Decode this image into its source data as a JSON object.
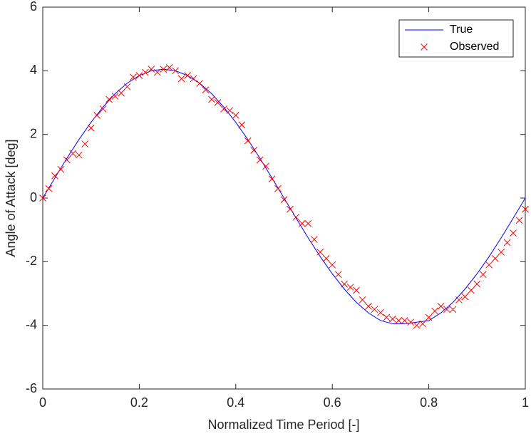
{
  "chart_data": {
    "type": "line",
    "xlabel": "Normalized Time Period [-]",
    "ylabel": "Angle of Attack [deg]",
    "xlim": [
      0,
      1
    ],
    "xticks": [
      0,
      0.2,
      0.4,
      0.6,
      0.8,
      1
    ],
    "ylim": [
      -6,
      6
    ],
    "yticks": [
      -6,
      -4,
      -2,
      0,
      2,
      4,
      6
    ],
    "grid": false,
    "legend": "top-right",
    "series": [
      {
        "name": "True",
        "color": "#0000ff",
        "marker": "none",
        "x": [
          0,
          0.025,
          0.05,
          0.075,
          0.1,
          0.125,
          0.15,
          0.175,
          0.2,
          0.225,
          0.25,
          0.275,
          0.3,
          0.325,
          0.35,
          0.375,
          0.4,
          0.425,
          0.45,
          0.475,
          0.5,
          0.525,
          0.55,
          0.575,
          0.6,
          0.625,
          0.65,
          0.675,
          0.7,
          0.725,
          0.75,
          0.775,
          0.8,
          0.825,
          0.85,
          0.875,
          0.9,
          0.925,
          0.95,
          0.975,
          1
        ],
        "values": [
          0,
          0.63,
          1.25,
          1.84,
          2.38,
          2.86,
          3.28,
          3.61,
          3.85,
          4.0,
          4.05,
          4.0,
          3.85,
          3.61,
          3.28,
          2.86,
          2.38,
          1.84,
          1.25,
          0.63,
          0,
          -0.63,
          -1.25,
          -1.84,
          -2.38,
          -2.86,
          -3.28,
          -3.61,
          -3.85,
          -3.95,
          -3.95,
          -3.9,
          -3.85,
          -3.61,
          -3.28,
          -2.86,
          -2.38,
          -1.84,
          -1.25,
          -0.63,
          0
        ]
      },
      {
        "name": "Observed",
        "color": "#ff0000",
        "marker": "x",
        "x": [
          0,
          0.0125,
          0.025,
          0.0375,
          0.05,
          0.0625,
          0.075,
          0.0875,
          0.1,
          0.1125,
          0.125,
          0.1375,
          0.15,
          0.1625,
          0.175,
          0.1875,
          0.2,
          0.2125,
          0.225,
          0.2375,
          0.25,
          0.2625,
          0.275,
          0.2875,
          0.3,
          0.3125,
          0.325,
          0.3375,
          0.35,
          0.3625,
          0.375,
          0.3875,
          0.4,
          0.4125,
          0.425,
          0.4375,
          0.45,
          0.4625,
          0.475,
          0.4875,
          0.5,
          0.5125,
          0.525,
          0.5375,
          0.55,
          0.5625,
          0.575,
          0.5875,
          0.6,
          0.6125,
          0.625,
          0.6375,
          0.65,
          0.6625,
          0.675,
          0.6875,
          0.7,
          0.7125,
          0.725,
          0.7375,
          0.75,
          0.7625,
          0.775,
          0.7875,
          0.8,
          0.8125,
          0.825,
          0.8375,
          0.85,
          0.8625,
          0.875,
          0.8875,
          0.9,
          0.9125,
          0.925,
          0.9375,
          0.95,
          0.9625,
          0.975,
          0.9875,
          1
        ],
        "values": [
          0,
          0.3,
          0.7,
          0.9,
          1.2,
          1.4,
          1.35,
          1.7,
          2.2,
          2.6,
          2.8,
          3.1,
          3.2,
          3.3,
          3.5,
          3.8,
          3.85,
          3.95,
          4.05,
          3.95,
          4.05,
          4.1,
          4.0,
          3.75,
          3.85,
          3.75,
          3.6,
          3.4,
          3.1,
          3.0,
          2.8,
          2.75,
          2.6,
          2.3,
          1.8,
          1.5,
          1.2,
          1.0,
          0.6,
          0.3,
          -0.05,
          -0.35,
          -0.6,
          -0.8,
          -0.8,
          -1.3,
          -1.7,
          -1.9,
          -2.1,
          -2.4,
          -2.7,
          -2.8,
          -2.9,
          -3.2,
          -3.4,
          -3.5,
          -3.6,
          -3.75,
          -3.8,
          -3.85,
          -3.85,
          -3.9,
          -4.0,
          -3.95,
          -3.75,
          -3.55,
          -3.4,
          -3.5,
          -3.5,
          -3.2,
          -3.1,
          -2.9,
          -2.7,
          -2.4,
          -2.1,
          -1.9,
          -1.7,
          -1.4,
          -1.1,
          -0.7,
          -0.35
        ]
      }
    ]
  }
}
